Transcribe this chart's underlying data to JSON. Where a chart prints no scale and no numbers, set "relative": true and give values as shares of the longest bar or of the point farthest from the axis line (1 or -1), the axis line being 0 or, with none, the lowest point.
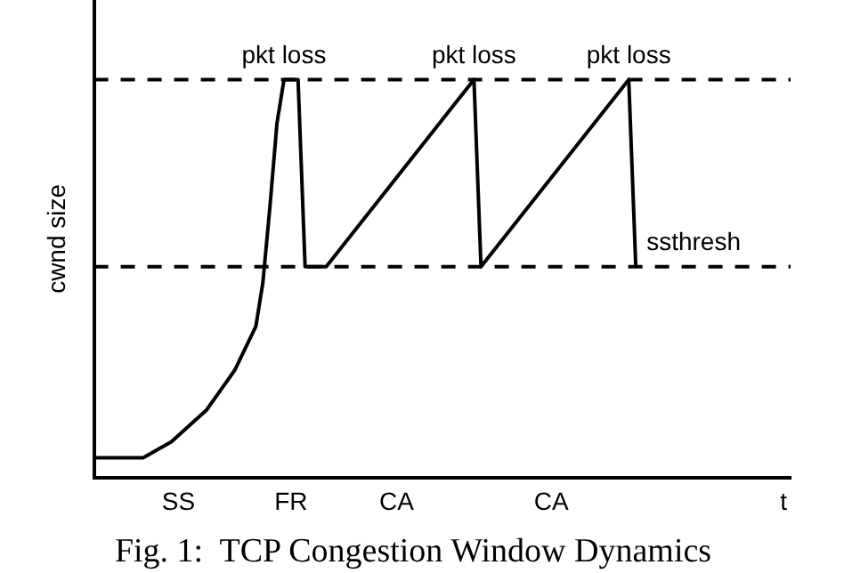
{
  "chart_data": {
    "type": "line",
    "relative": true,
    "title": "Fig. 1:  TCP Congestion Window Dynamics",
    "ylabel": "cwnd size",
    "categories": [
      null,
      null,
      null,
      null,
      null,
      null,
      null,
      null,
      null,
      null,
      null,
      null,
      "SS",
      null,
      null,
      null,
      null,
      null,
      null,
      null,
      null,
      null,
      null,
      null,
      null,
      null,
      null,
      null,
      "FR",
      null,
      null,
      null,
      null,
      null,
      null,
      null,
      null,
      null,
      null,
      null,
      null,
      null,
      null,
      "CA",
      null,
      null,
      null,
      null,
      null,
      null,
      null,
      null,
      null,
      null,
      null,
      null,
      null,
      null,
      null,
      null,
      null,
      null,
      null,
      null,
      null,
      "CA",
      null,
      null,
      null,
      null,
      null,
      null,
      null,
      null,
      null,
      null,
      null,
      null,
      null,
      null,
      null,
      null,
      null,
      null,
      null,
      null,
      null,
      null,
      null,
      null,
      null,
      null,
      null,
      null,
      null,
      null,
      null,
      null,
      "t",
      null
    ],
    "series": [
      {
        "color": "#000000",
        "values": [
          0.05,
          null,
          null,
          null,
          null,
          null,
          null,
          0.05,
          null,
          null,
          null,
          0.09,
          null,
          null,
          null,
          null,
          0.17,
          null,
          null,
          null,
          0.27,
          null,
          null,
          0.38,
          0.49,
          0.68,
          0.89,
          1,
          null,
          1,
          0.53,
          null,
          null,
          0.53,
          null,
          null,
          null,
          null,
          null,
          null,
          null,
          null,
          null,
          null,
          null,
          null,
          null,
          null,
          null,
          null,
          null,
          null,
          null,
          null,
          1,
          0.53,
          null,
          null,
          null,
          null,
          null,
          null,
          null,
          null,
          null,
          null,
          null,
          null,
          null,
          null,
          null,
          null,
          null,
          null,
          null,
          null,
          1,
          0.53,
          null,
          null,
          null,
          null,
          null,
          null,
          null,
          null,
          null,
          null,
          null,
          null,
          null,
          null,
          null,
          null,
          null,
          null,
          null,
          null,
          null,
          null
        ]
      }
    ],
    "ref_lines": [
      {
        "axis": "y",
        "value": 1,
        "label": null,
        "color": "#000000",
        "line_style": "dashed"
      },
      {
        "axis": "y",
        "value": 0.53,
        "label": "ssthresh",
        "color": "#000000",
        "line_style": "dashed"
      }
    ],
    "annotations": [
      {
        "text": "pkt loss",
        "y": 1
      },
      {
        "text": "pkt loss",
        "y": 1
      },
      {
        "text": "pkt loss",
        "y": 1
      }
    ],
    "grid": false,
    "legend": false,
    "marker": "none",
    "line_style": "solid"
  }
}
